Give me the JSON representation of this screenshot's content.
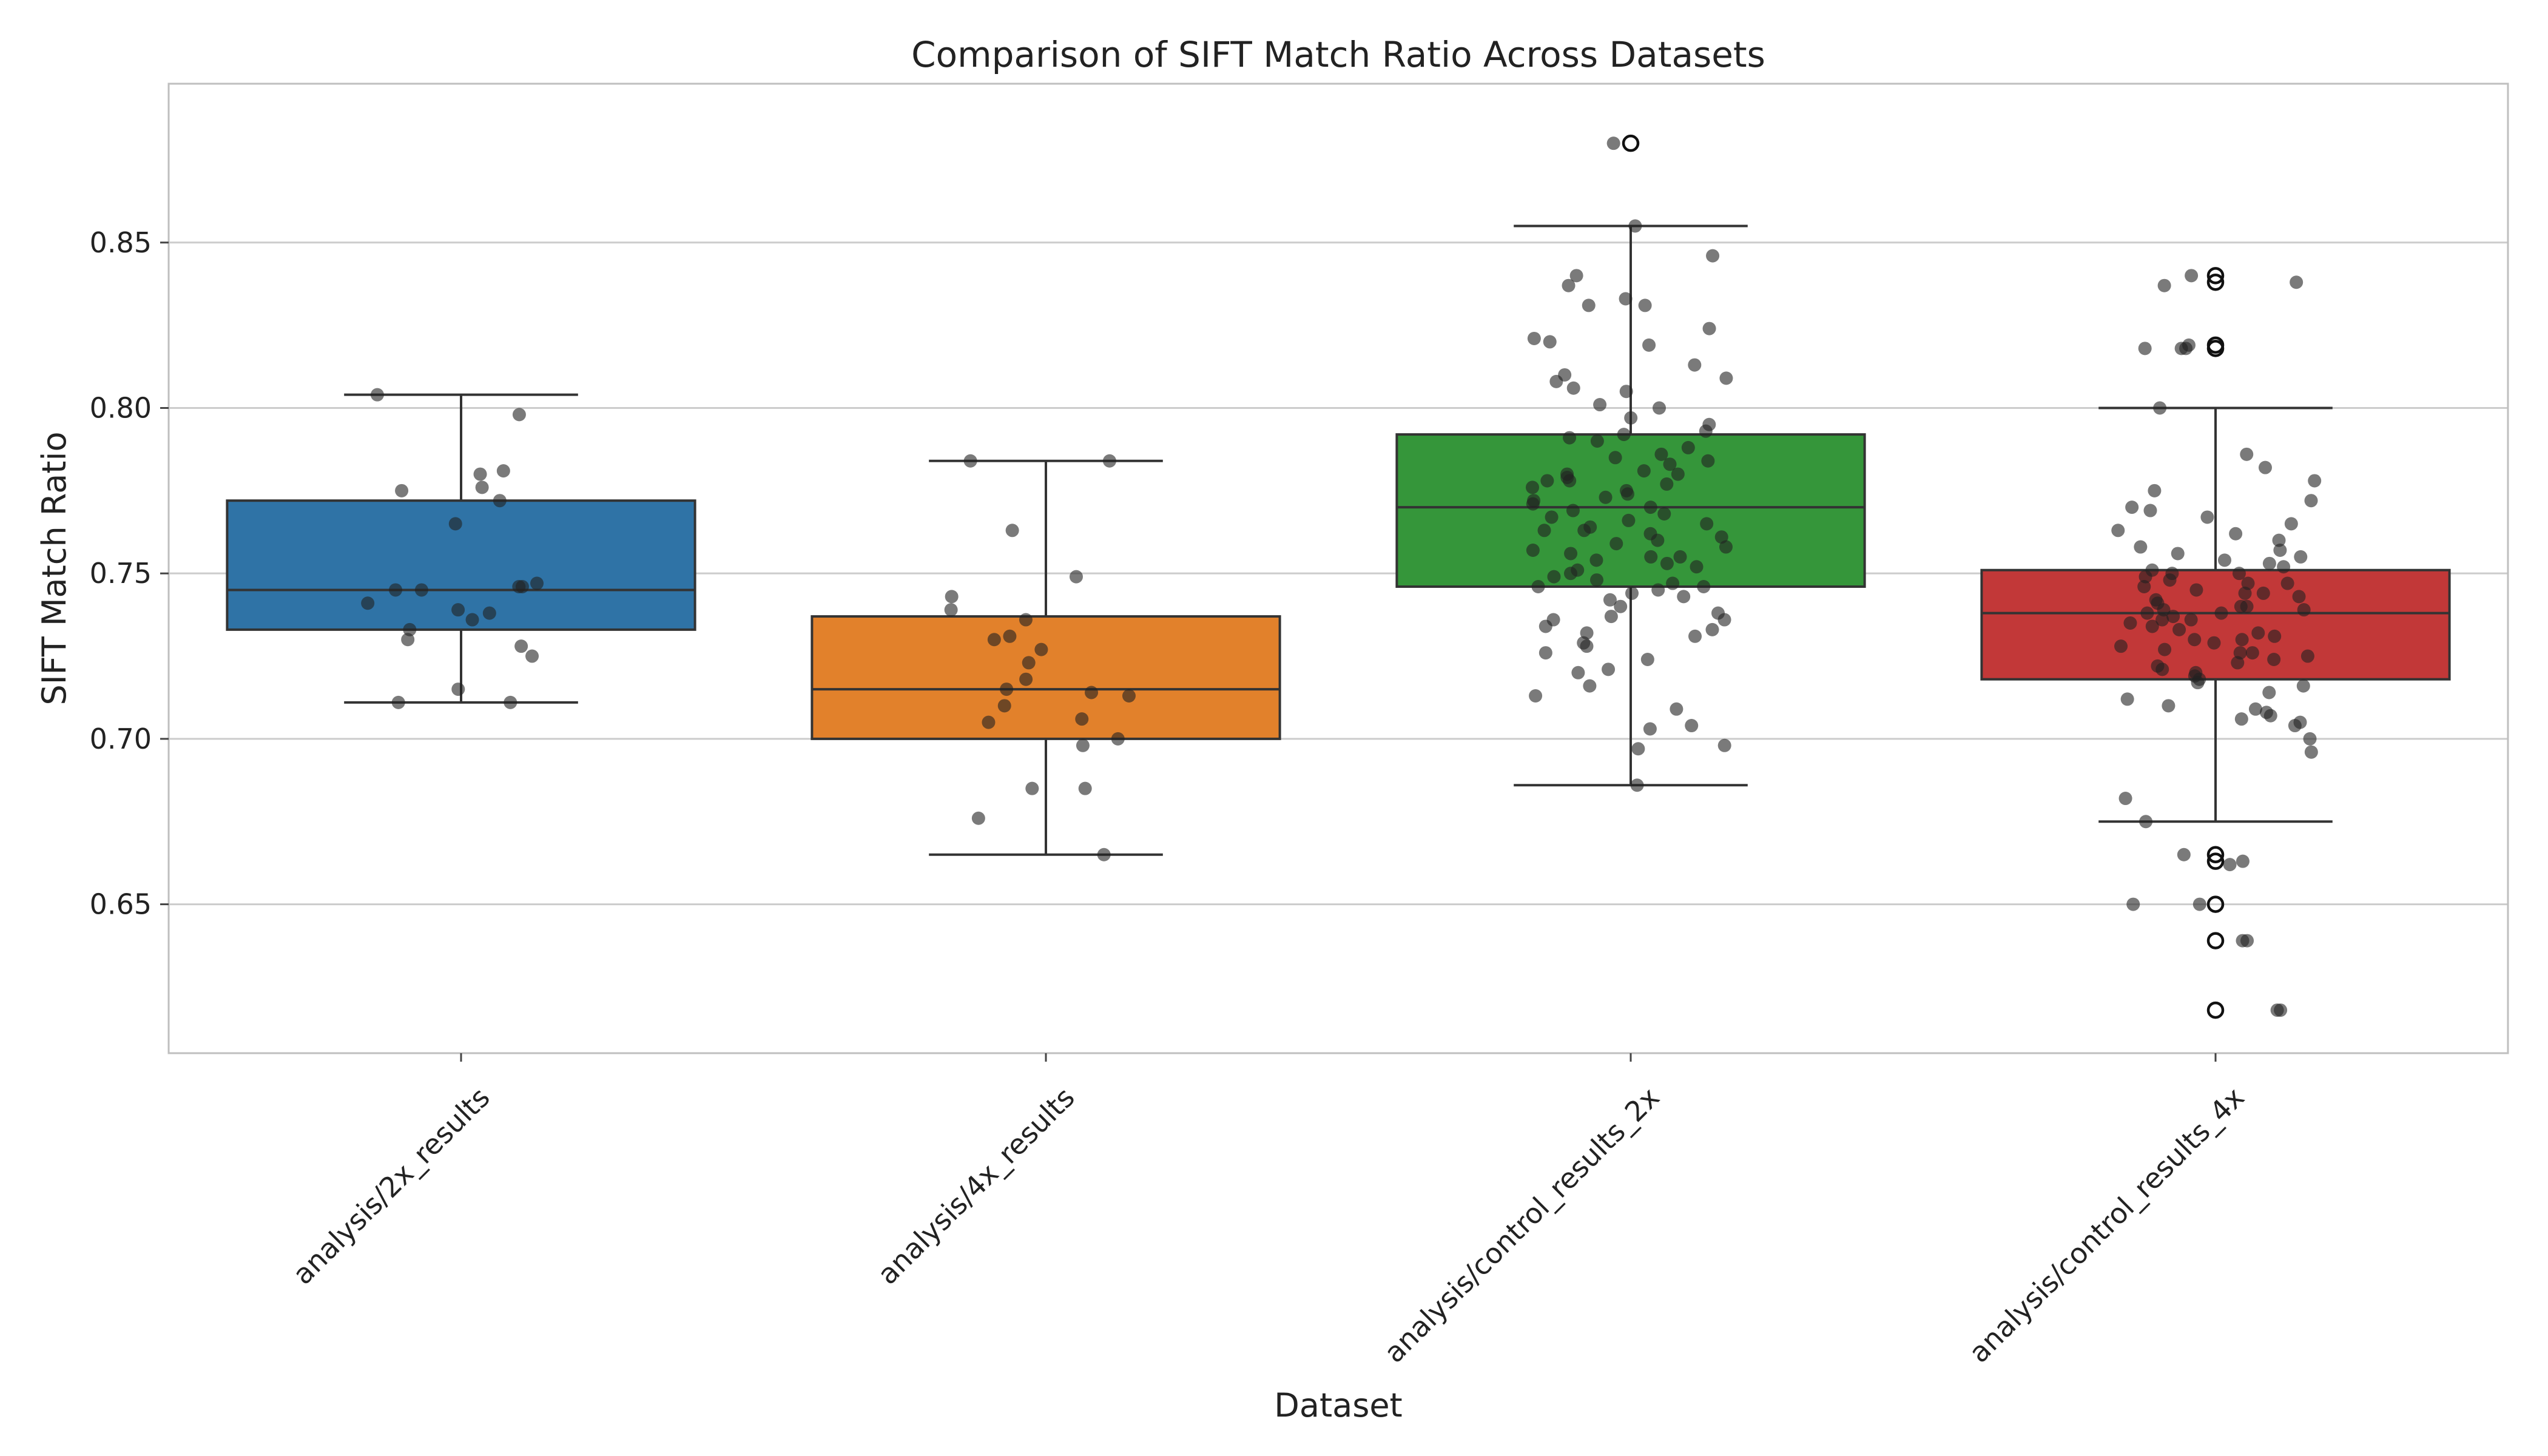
{
  "chart_data": {
    "type": "box",
    "title": "Comparison of SIFT Match Ratio Across Datasets",
    "xlabel": "Dataset",
    "ylabel": "SIFT Match Ratio",
    "ylim": [
      0.605,
      0.898
    ],
    "yticks": [
      0.65,
      0.7,
      0.75,
      0.8,
      0.85
    ],
    "ytick_labels": [
      "0.65",
      "0.70",
      "0.75",
      "0.80",
      "0.85"
    ],
    "grid": true,
    "categories": [
      "analysis/2x_results",
      "analysis/4x_results",
      "analysis/control_results_2x",
      "analysis/control_results_4x"
    ],
    "colors": [
      "#2f73a6",
      "#e2812b",
      "#35963a",
      "#c23838"
    ],
    "series": [
      {
        "name": "analysis/2x_results",
        "whisker_low": 0.711,
        "q1": 0.733,
        "median": 0.745,
        "q3": 0.772,
        "whisker_high": 0.804,
        "outliers": [],
        "points": [
          0.804,
          0.798,
          0.781,
          0.78,
          0.776,
          0.775,
          0.772,
          0.765,
          0.747,
          0.746,
          0.746,
          0.745,
          0.745,
          0.741,
          0.739,
          0.738,
          0.736,
          0.733,
          0.73,
          0.728,
          0.725,
          0.715,
          0.711,
          0.711
        ]
      },
      {
        "name": "analysis/4x_results",
        "whisker_low": 0.665,
        "q1": 0.7,
        "median": 0.715,
        "q3": 0.737,
        "whisker_high": 0.784,
        "outliers": [],
        "points": [
          0.784,
          0.784,
          0.763,
          0.749,
          0.743,
          0.739,
          0.736,
          0.731,
          0.73,
          0.727,
          0.723,
          0.718,
          0.715,
          0.714,
          0.713,
          0.71,
          0.706,
          0.705,
          0.7,
          0.698,
          0.685,
          0.685,
          0.676,
          0.665
        ]
      },
      {
        "name": "analysis/control_results_2x",
        "whisker_low": 0.686,
        "q1": 0.746,
        "median": 0.77,
        "q3": 0.792,
        "whisker_high": 0.855,
        "outliers": [
          0.88
        ],
        "points": [
          0.88,
          0.855,
          0.846,
          0.84,
          0.837,
          0.833,
          0.831,
          0.831,
          0.824,
          0.821,
          0.82,
          0.819,
          0.813,
          0.81,
          0.809,
          0.808,
          0.806,
          0.805,
          0.801,
          0.8,
          0.797,
          0.795,
          0.793,
          0.792,
          0.791,
          0.79,
          0.788,
          0.786,
          0.785,
          0.784,
          0.783,
          0.781,
          0.78,
          0.78,
          0.779,
          0.778,
          0.778,
          0.777,
          0.776,
          0.775,
          0.774,
          0.773,
          0.772,
          0.771,
          0.77,
          0.769,
          0.768,
          0.767,
          0.766,
          0.765,
          0.764,
          0.763,
          0.763,
          0.762,
          0.761,
          0.76,
          0.759,
          0.758,
          0.757,
          0.756,
          0.755,
          0.755,
          0.754,
          0.753,
          0.752,
          0.751,
          0.75,
          0.749,
          0.748,
          0.747,
          0.746,
          0.746,
          0.745,
          0.744,
          0.743,
          0.742,
          0.74,
          0.738,
          0.737,
          0.736,
          0.736,
          0.734,
          0.733,
          0.732,
          0.731,
          0.729,
          0.728,
          0.726,
          0.724,
          0.721,
          0.72,
          0.716,
          0.713,
          0.709,
          0.704,
          0.703,
          0.698,
          0.697,
          0.686
        ]
      },
      {
        "name": "analysis/control_results_4x",
        "whisker_low": 0.675,
        "q1": 0.718,
        "median": 0.738,
        "q3": 0.751,
        "whisker_high": 0.8,
        "outliers": [
          0.84,
          0.838,
          0.819,
          0.818,
          0.665,
          0.663,
          0.65,
          0.639,
          0.618
        ],
        "points": [
          0.84,
          0.838,
          0.837,
          0.819,
          0.818,
          0.818,
          0.818,
          0.8,
          0.786,
          0.782,
          0.778,
          0.775,
          0.772,
          0.77,
          0.769,
          0.767,
          0.765,
          0.763,
          0.762,
          0.76,
          0.758,
          0.757,
          0.756,
          0.755,
          0.754,
          0.753,
          0.752,
          0.751,
          0.75,
          0.75,
          0.749,
          0.748,
          0.747,
          0.747,
          0.746,
          0.745,
          0.744,
          0.744,
          0.743,
          0.742,
          0.741,
          0.74,
          0.74,
          0.739,
          0.739,
          0.738,
          0.738,
          0.737,
          0.736,
          0.736,
          0.735,
          0.734,
          0.733,
          0.732,
          0.731,
          0.73,
          0.73,
          0.729,
          0.728,
          0.727,
          0.726,
          0.726,
          0.725,
          0.724,
          0.723,
          0.722,
          0.721,
          0.72,
          0.719,
          0.718,
          0.717,
          0.716,
          0.714,
          0.712,
          0.71,
          0.709,
          0.708,
          0.707,
          0.706,
          0.705,
          0.704,
          0.7,
          0.696,
          0.682,
          0.675,
          0.665,
          0.663,
          0.662,
          0.65,
          0.65,
          0.639,
          0.639,
          0.618,
          0.618
        ]
      }
    ]
  }
}
